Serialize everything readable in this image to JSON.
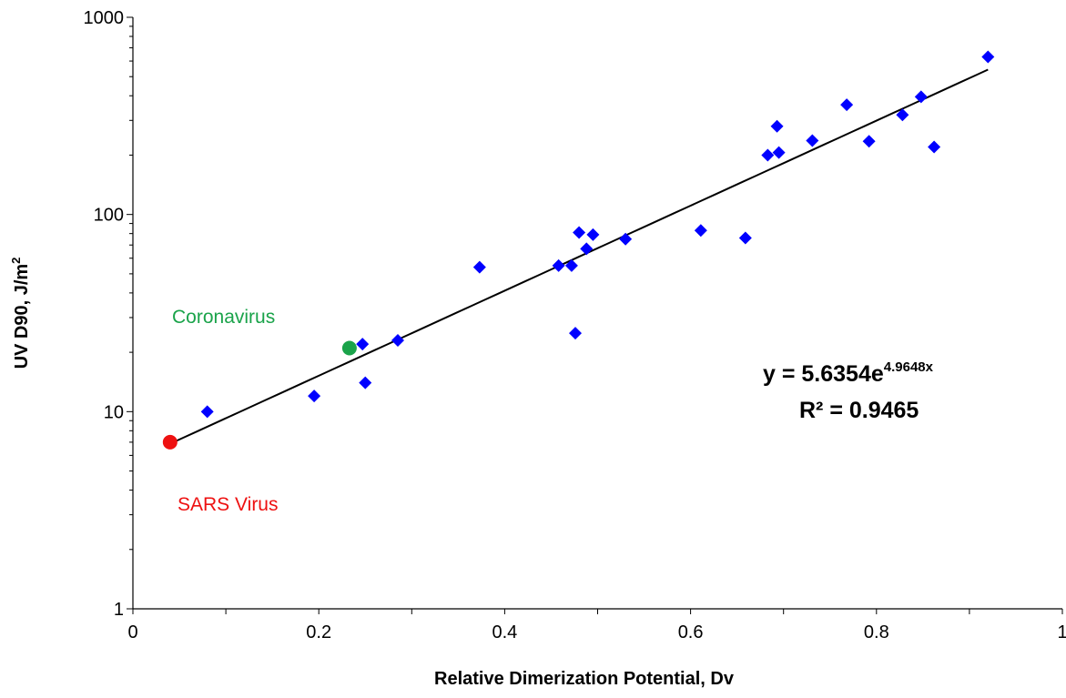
{
  "chart_data": {
    "type": "scatter",
    "xlabel": "Relative Dimerization Potential, Dv",
    "ylabel": "UV D90, J/m",
    "ylabel_sup": "2",
    "xlim": [
      0,
      1
    ],
    "ylim": [
      1,
      1000
    ],
    "y_scale": "log",
    "grid": false,
    "x_ticks": [
      "0",
      "0.2",
      "0.4",
      "0.6",
      "0.8",
      "1"
    ],
    "y_ticks": [
      "1",
      "10",
      "100",
      "1000"
    ],
    "series": [
      {
        "marker": "diamond",
        "color": "#0000ff",
        "points": [
          {
            "x": 0.08,
            "y": 10
          },
          {
            "x": 0.195,
            "y": 12
          },
          {
            "x": 0.247,
            "y": 22
          },
          {
            "x": 0.25,
            "y": 14
          },
          {
            "x": 0.285,
            "y": 23
          },
          {
            "x": 0.373,
            "y": 54
          },
          {
            "x": 0.458,
            "y": 55
          },
          {
            "x": 0.472,
            "y": 55
          },
          {
            "x": 0.476,
            "y": 25
          },
          {
            "x": 0.48,
            "y": 81
          },
          {
            "x": 0.488,
            "y": 67
          },
          {
            "x": 0.495,
            "y": 79
          },
          {
            "x": 0.53,
            "y": 75
          },
          {
            "x": 0.611,
            "y": 83
          },
          {
            "x": 0.659,
            "y": 76
          },
          {
            "x": 0.683,
            "y": 200
          },
          {
            "x": 0.693,
            "y": 280
          },
          {
            "x": 0.695,
            "y": 206
          },
          {
            "x": 0.731,
            "y": 237
          },
          {
            "x": 0.768,
            "y": 360
          },
          {
            "x": 0.792,
            "y": 235
          },
          {
            "x": 0.828,
            "y": 320
          },
          {
            "x": 0.848,
            "y": 395
          },
          {
            "x": 0.862,
            "y": 220
          },
          {
            "x": 0.92,
            "y": 630
          }
        ]
      },
      {
        "name": "Coronavirus",
        "marker": "circle",
        "color": "#1aa34a",
        "points": [
          {
            "x": 0.233,
            "y": 21
          }
        ]
      },
      {
        "name": "SARS Virus",
        "marker": "circle",
        "color": "#ee1111",
        "points": [
          {
            "x": 0.04,
            "y": 7
          }
        ]
      }
    ],
    "trendline": {
      "type": "exponential",
      "a": 5.6354,
      "b": 4.9648,
      "x_range": [
        0.04,
        0.92
      ],
      "equation_prefix": "y = 5.6354e",
      "equation_exponent": "4.9648x",
      "r_squared": "R² = 0.9465"
    },
    "annotations": [
      {
        "text": "Coronavirus",
        "color": "#1aa34a"
      },
      {
        "text": "SARS Virus",
        "color": "#ee1111"
      }
    ]
  }
}
